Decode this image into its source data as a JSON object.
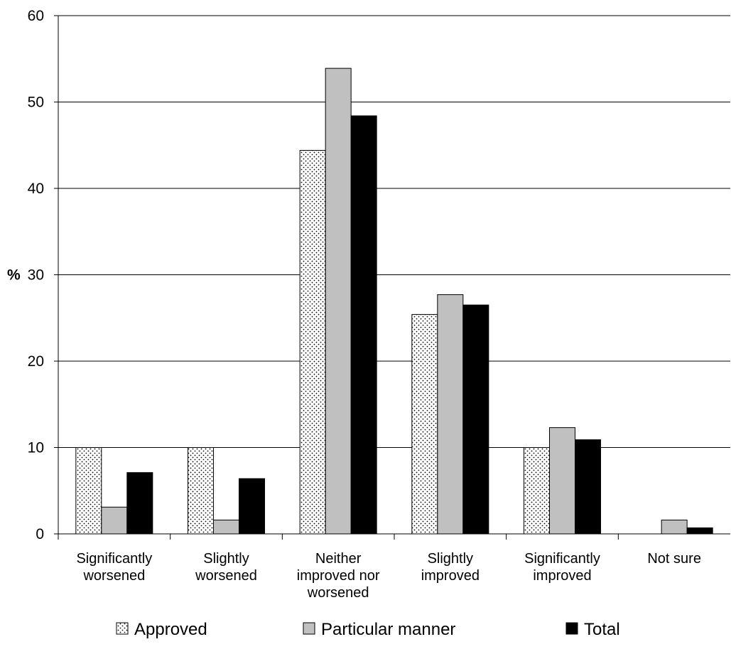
{
  "chart_data": {
    "type": "bar",
    "ylabel": "%",
    "ylim": [
      0,
      60
    ],
    "yticks": [
      0,
      10,
      20,
      30,
      40,
      50,
      60
    ],
    "grid": true,
    "legend_position": "bottom",
    "categories": [
      [
        "Significantly",
        "worsened"
      ],
      [
        "Slightly",
        "worsened"
      ],
      [
        "Neither",
        "improved nor",
        "worsened"
      ],
      [
        "Slightly",
        "improved"
      ],
      [
        "Significantly",
        "improved"
      ],
      [
        "Not sure"
      ]
    ],
    "series": [
      {
        "name": "Approved",
        "fill": "dots",
        "color": "#ffffff",
        "values": [
          10,
          10,
          44.4,
          25.4,
          10,
          0
        ]
      },
      {
        "name": "Particular manner",
        "fill": "solid",
        "color": "#c0c0c0",
        "values": [
          3.1,
          1.6,
          53.9,
          27.7,
          12.3,
          1.6
        ]
      },
      {
        "name": "Total",
        "fill": "solid",
        "color": "#000000",
        "values": [
          7.1,
          6.4,
          48.4,
          26.5,
          10.9,
          0.7
        ]
      }
    ]
  }
}
